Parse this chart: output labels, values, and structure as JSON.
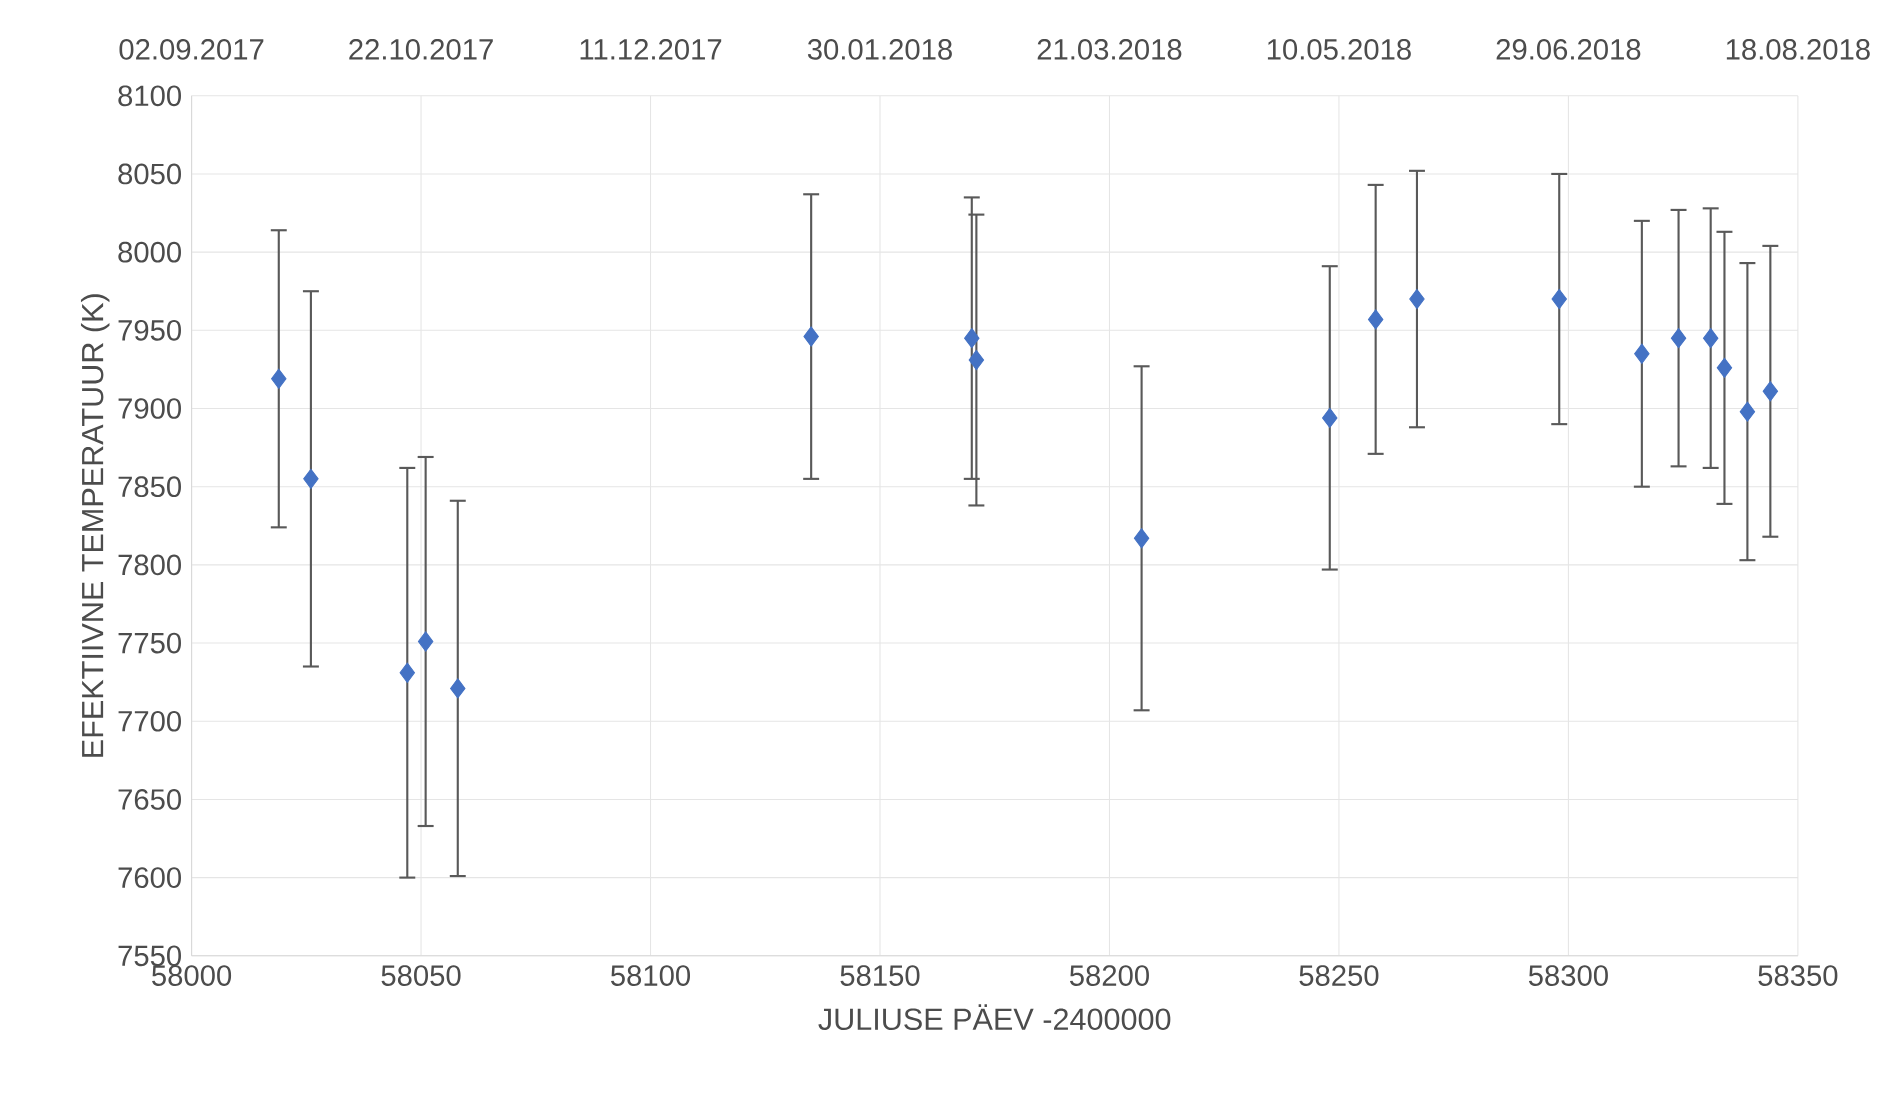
{
  "chart_data": {
    "type": "scatter",
    "xlabel": "JULIUSE PÄEV -2400000",
    "ylabel": "EFEKTIIVNE TEMPERATUUR (K)",
    "x": [
      58019,
      58026,
      58047,
      58051,
      58058,
      58135,
      58170,
      58171,
      58207,
      58248,
      58258,
      58267,
      58298,
      58316,
      58324,
      58331,
      58334,
      58339,
      58344
    ],
    "series": [
      {
        "color": "#4472c4",
        "values": [
          7919,
          7855,
          7731,
          7751,
          7721,
          7946,
          7945,
          7931,
          7817,
          7894,
          7957,
          7970,
          7970,
          7935,
          7945,
          7945,
          7926,
          7898,
          7911
        ],
        "errors": [
          95,
          120,
          131,
          118,
          120,
          91,
          90,
          93,
          110,
          97,
          86,
          82,
          80,
          85,
          82,
          83,
          87,
          95,
          93
        ]
      }
    ],
    "marker": "diamond",
    "grid": true,
    "xlim": [
      58000,
      58350
    ],
    "xticks": [
      58000,
      58050,
      58100,
      58150,
      58200,
      58250,
      58300,
      58350
    ],
    "ylim": [
      7550,
      8100
    ],
    "yticks": [
      7550,
      7600,
      7650,
      7700,
      7750,
      7800,
      7850,
      7900,
      7950,
      8000,
      8050,
      8100
    ],
    "x2lim": [
      "2017-09-02",
      "2018-08-18"
    ],
    "x2ticks": [
      {
        "value": "2017-09-02",
        "label": "02.09.2017"
      },
      {
        "value": "2017-10-22",
        "label": "22.10.2017"
      },
      {
        "value": "2017-12-11",
        "label": "11.12.2017"
      },
      {
        "value": "2018-01-30",
        "label": "30.01.2018"
      },
      {
        "value": "2018-03-21",
        "label": "21.03.2018"
      },
      {
        "value": "2018-05-10",
        "label": "10.05.2018"
      },
      {
        "value": "2018-06-29",
        "label": "29.06.2018"
      },
      {
        "value": "2018-08-18",
        "label": "18.08.2018"
      }
    ]
  }
}
